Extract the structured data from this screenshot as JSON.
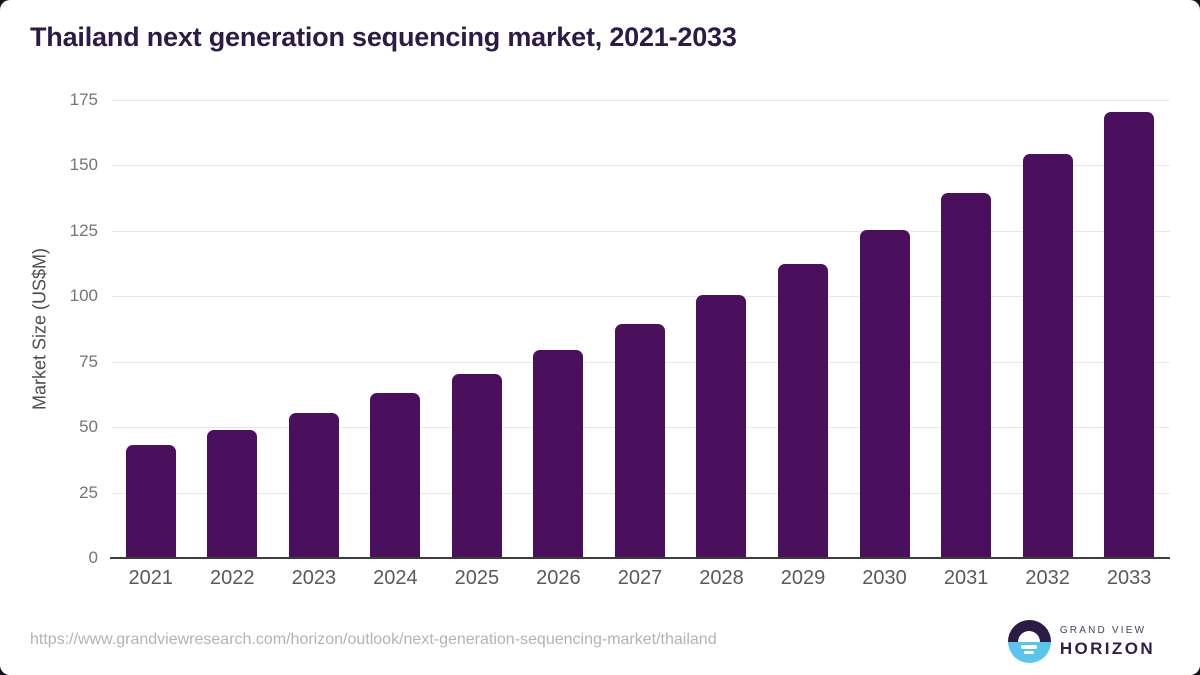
{
  "page": {
    "title": "Thailand next generation sequencing market, 2021-2033"
  },
  "chart_data": {
    "type": "bar",
    "title": "Thailand next generation sequencing market, 2021-2033",
    "categories": [
      "2021",
      "2022",
      "2023",
      "2024",
      "2025",
      "2026",
      "2027",
      "2028",
      "2029",
      "2030",
      "2031",
      "2032",
      "2033"
    ],
    "values": [
      43,
      49,
      55.5,
      63,
      70.5,
      79.5,
      89.5,
      100.5,
      112.5,
      125.5,
      139.5,
      154.5,
      170.5
    ],
    "xlabel": "",
    "ylabel": "Market Size (US$M)",
    "ylim": [
      0,
      175
    ],
    "yticks": [
      0,
      25,
      50,
      75,
      100,
      125,
      150,
      175
    ],
    "grid": true,
    "legend": "none",
    "bar_color": "#4a105e"
  },
  "footer": {
    "source_url": "https://www.grandviewresearch.com/horizon/outlook/next-generation-sequencing-market/thailand",
    "brand_top": "GRAND VIEW",
    "brand_bottom": "HORIZON"
  },
  "colors": {
    "bar": "#4a105e",
    "title_text": "#2d1b47",
    "axis_line": "#3c3c3c",
    "gridline": "#e7e7e7",
    "tick_label": "#595959",
    "logo_top_half": "#2a1c44",
    "logo_bottom_half": "#5bc4ec"
  },
  "icons": {
    "logo": "grand-view-horizon-sun-circle"
  }
}
